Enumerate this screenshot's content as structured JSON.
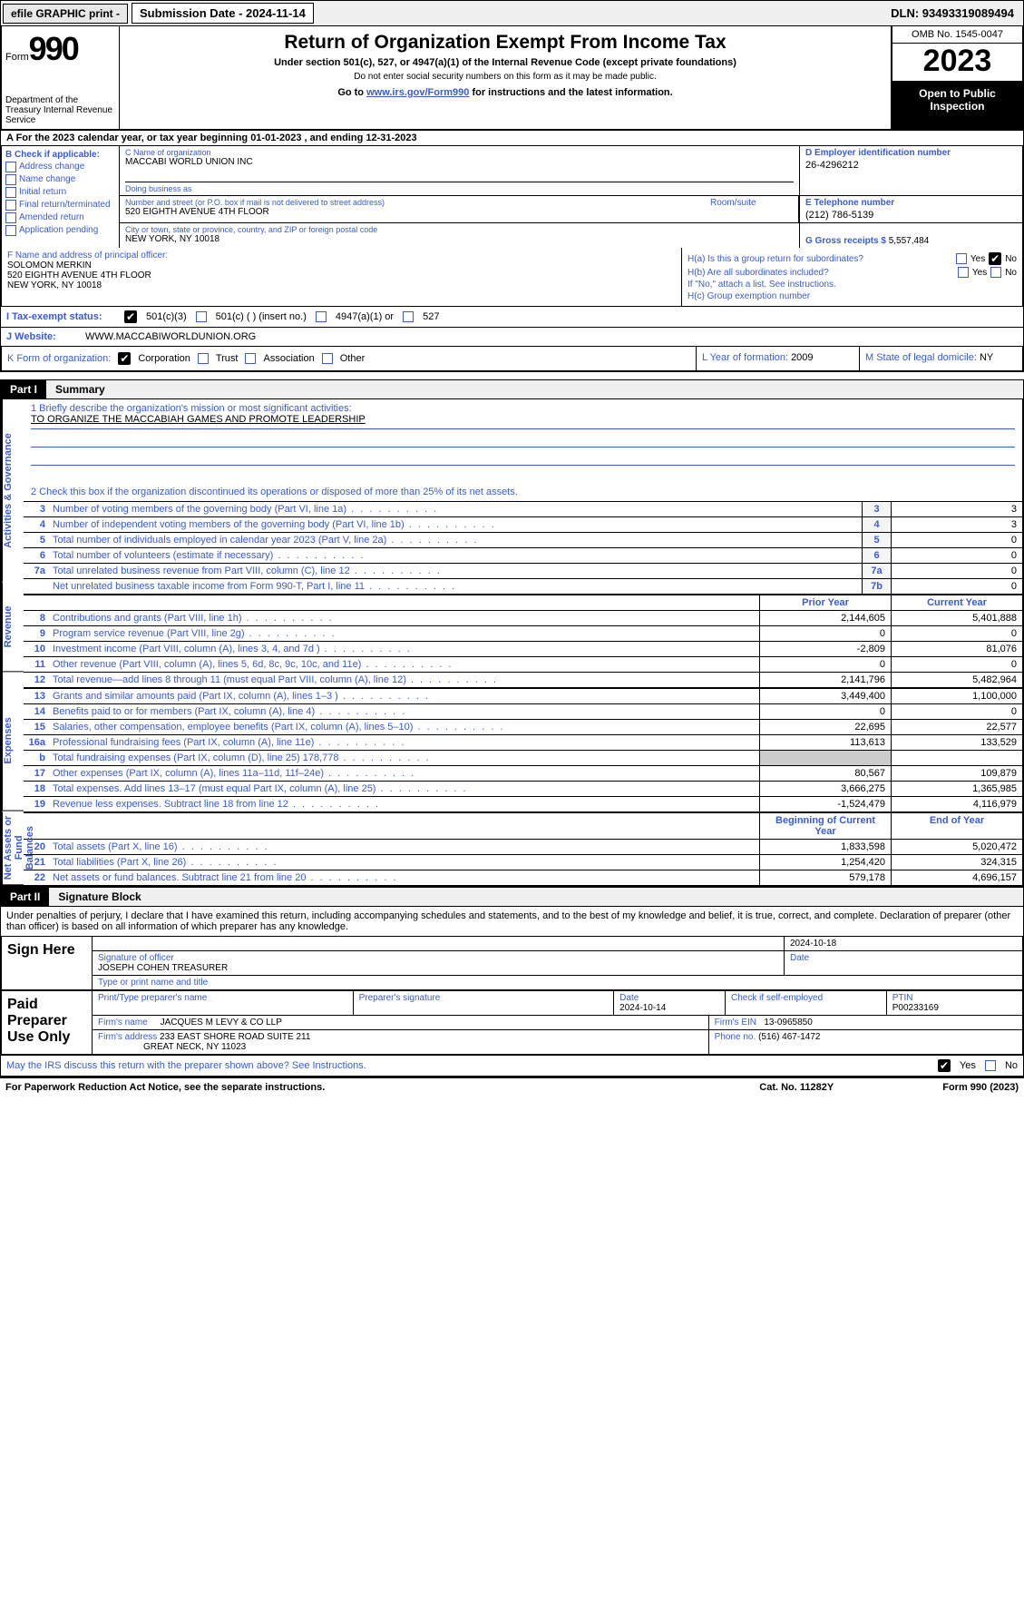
{
  "topbar": {
    "efile": "efile GRAPHIC print -",
    "submission": "Submission Date - 2024-11-14",
    "dln": "DLN: 93493319089494"
  },
  "header": {
    "form_label": "Form",
    "form_number": "990",
    "dept": "Department of the Treasury Internal Revenue Service",
    "title": "Return of Organization Exempt From Income Tax",
    "subtitle1": "Under section 501(c), 527, or 4947(a)(1) of the Internal Revenue Code (except private foundations)",
    "subtitle2": "Do not enter social security numbers on this form as it may be made public.",
    "subtitle3_pre": "Go to ",
    "subtitle3_link": "www.irs.gov/Form990",
    "subtitle3_post": " for instructions and the latest information.",
    "omb": "OMB No. 1545-0047",
    "year": "2023",
    "open": "Open to Public Inspection"
  },
  "line_a": "A For the 2023 calendar year, or tax year beginning 01-01-2023    , and ending 12-31-2023",
  "box_b": {
    "header": "B Check if applicable:",
    "opts": [
      "Address change",
      "Name change",
      "Initial return",
      "Final return/terminated",
      "Amended return",
      "Application pending"
    ]
  },
  "box_c": {
    "name_lbl": "C Name of organization",
    "name": "MACCABI WORLD UNION INC",
    "dba_lbl": "Doing business as",
    "dba": "",
    "addr_lbl": "Number and street (or P.O. box if mail is not delivered to street address)",
    "addr": "520 EIGHTH AVENUE 4TH FLOOR",
    "room_lbl": "Room/suite",
    "city_lbl": "City or town, state or province, country, and ZIP or foreign postal code",
    "city": "NEW YORK, NY  10018"
  },
  "box_d": {
    "lbl": "D Employer identification number",
    "val": "26-4296212"
  },
  "box_e": {
    "lbl": "E Telephone number",
    "val": "(212) 786-5139"
  },
  "box_g": {
    "lbl": "G Gross receipts $",
    "val": "5,557,484"
  },
  "box_f": {
    "lbl": "F  Name and address of principal officer:",
    "name": "SOLOMON MERKIN",
    "addr": "520 EIGHTH AVENUE 4TH FLOOR",
    "city": "NEW YORK, NY  10018"
  },
  "box_h": {
    "a_lbl": "H(a)  Is this a group return for subordinates?",
    "b_lbl": "H(b)  Are all subordinates included?",
    "note": "If \"No,\" attach a list. See instructions.",
    "c_lbl": "H(c)  Group exemption number"
  },
  "row_i": {
    "lbl": "I    Tax-exempt status:",
    "opts": [
      "501(c)(3)",
      "501(c) (   ) (insert no.)",
      "4947(a)(1) or",
      "527"
    ]
  },
  "row_j": {
    "lbl": "J   Website:",
    "val": "WWW.MACCABIWORLDUNION.ORG"
  },
  "row_k": {
    "lbl": "K Form of organization:",
    "opts": [
      "Corporation",
      "Trust",
      "Association",
      "Other"
    ],
    "l_lbl": "L Year of formation:",
    "l_val": "2009",
    "m_lbl": "M State of legal domicile:",
    "m_val": "NY"
  },
  "part1": {
    "label": "Part I",
    "title": "Summary"
  },
  "summary": {
    "mission_lbl": "1   Briefly describe the organization's mission or most significant activities:",
    "mission": "TO ORGANIZE THE MACCABIAH GAMES AND PROMOTE LEADERSHIP",
    "line2": "2   Check this box      if the organization discontinued its operations or disposed of more than 25% of its net assets.",
    "sections": {
      "gov_label": "Activities & Governance",
      "rev_label": "Revenue",
      "exp_label": "Expenses",
      "net_label": "Net Assets or Fund Balances"
    },
    "gov_rows": [
      {
        "n": "3",
        "d": "Number of voting members of the governing body (Part VI, line 1a)",
        "k": "3",
        "v": "3"
      },
      {
        "n": "4",
        "d": "Number of independent voting members of the governing body (Part VI, line 1b)",
        "k": "4",
        "v": "3"
      },
      {
        "n": "5",
        "d": "Total number of individuals employed in calendar year 2023 (Part V, line 2a)",
        "k": "5",
        "v": "0"
      },
      {
        "n": "6",
        "d": "Total number of volunteers (estimate if necessary)",
        "k": "6",
        "v": "0"
      },
      {
        "n": "7a",
        "d": "Total unrelated business revenue from Part VIII, column (C), line 12",
        "k": "7a",
        "v": "0"
      },
      {
        "n": "",
        "d": "Net unrelated business taxable income from Form 990-T, Part I, line 11",
        "k": "7b",
        "v": "0"
      }
    ],
    "hdr_prior": "Prior Year",
    "hdr_current": "Current Year",
    "rev_rows": [
      {
        "n": "8",
        "d": "Contributions and grants (Part VIII, line 1h)",
        "p": "2,144,605",
        "c": "5,401,888"
      },
      {
        "n": "9",
        "d": "Program service revenue (Part VIII, line 2g)",
        "p": "0",
        "c": "0"
      },
      {
        "n": "10",
        "d": "Investment income (Part VIII, column (A), lines 3, 4, and 7d )",
        "p": "-2,809",
        "c": "81,076"
      },
      {
        "n": "11",
        "d": "Other revenue (Part VIII, column (A), lines 5, 6d, 8c, 9c, 10c, and 11e)",
        "p": "0",
        "c": "0"
      },
      {
        "n": "12",
        "d": "Total revenue—add lines 8 through 11 (must equal Part VIII, column (A), line 12)",
        "p": "2,141,796",
        "c": "5,482,964"
      }
    ],
    "exp_rows": [
      {
        "n": "13",
        "d": "Grants and similar amounts paid (Part IX, column (A), lines 1–3 )",
        "p": "3,449,400",
        "c": "1,100,000"
      },
      {
        "n": "14",
        "d": "Benefits paid to or for members (Part IX, column (A), line 4)",
        "p": "0",
        "c": "0"
      },
      {
        "n": "15",
        "d": "Salaries, other compensation, employee benefits (Part IX, column (A), lines 5–10)",
        "p": "22,695",
        "c": "22,577"
      },
      {
        "n": "16a",
        "d": "Professional fundraising fees (Part IX, column (A), line 11e)",
        "p": "113,613",
        "c": "133,529"
      },
      {
        "n": "b",
        "d": "Total fundraising expenses (Part IX, column (D), line 25) 178,778",
        "p": "",
        "c": "",
        "shade": true
      },
      {
        "n": "17",
        "d": "Other expenses (Part IX, column (A), lines 11a–11d, 11f–24e)",
        "p": "80,567",
        "c": "109,879"
      },
      {
        "n": "18",
        "d": "Total expenses. Add lines 13–17 (must equal Part IX, column (A), line 25)",
        "p": "3,666,275",
        "c": "1,365,985"
      },
      {
        "n": "19",
        "d": "Revenue less expenses. Subtract line 18 from line 12",
        "p": "-1,524,479",
        "c": "4,116,979"
      }
    ],
    "hdr_begin": "Beginning of Current Year",
    "hdr_end": "End of Year",
    "net_rows": [
      {
        "n": "20",
        "d": "Total assets (Part X, line 16)",
        "p": "1,833,598",
        "c": "5,020,472"
      },
      {
        "n": "21",
        "d": "Total liabilities (Part X, line 26)",
        "p": "1,254,420",
        "c": "324,315"
      },
      {
        "n": "22",
        "d": "Net assets or fund balances. Subtract line 21 from line 20",
        "p": "579,178",
        "c": "4,696,157"
      }
    ]
  },
  "part2": {
    "label": "Part II",
    "title": "Signature Block"
  },
  "penalties": "Under penalties of perjury, I declare that I have examined this return, including accompanying schedules and statements, and to the best of my knowledge and belief, it is true, correct, and complete. Declaration of preparer (other than officer) is based on all information of which preparer has any knowledge.",
  "sign": {
    "here": "Sign Here",
    "sig_lbl": "Signature of officer",
    "officer": "JOSEPH COHEN  TREASURER",
    "type_lbl": "Type or print name and title",
    "date_lbl": "Date",
    "date": "2024-10-18"
  },
  "paid": {
    "label": "Paid Preparer Use Only",
    "name_lbl": "Print/Type preparer's name",
    "name": "",
    "sig_lbl": "Preparer's signature",
    "date_lbl": "Date",
    "date": "2024-10-14",
    "check_lbl": "Check       if self-employed",
    "ptin_lbl": "PTIN",
    "ptin": "P00233169",
    "firm_name_lbl": "Firm's name",
    "firm_name": "JACQUES M LEVY & CO LLP",
    "firm_ein_lbl": "Firm's EIN",
    "firm_ein": "13-0965850",
    "firm_addr_lbl": "Firm's address",
    "firm_addr": "233 EAST SHORE ROAD SUITE 211",
    "firm_city": "GREAT NECK, NY  11023",
    "phone_lbl": "Phone no.",
    "phone": "(516) 467-1472"
  },
  "discuss": "May the IRS discuss this return with the preparer shown above? See Instructions.",
  "footer": {
    "left": "For Paperwork Reduction Act Notice, see the separate instructions.",
    "mid": "Cat. No. 11282Y",
    "right_pre": "Form ",
    "right_b": "990",
    "right_post": " (2023)"
  },
  "yn": {
    "yes": "Yes",
    "no": "No"
  }
}
